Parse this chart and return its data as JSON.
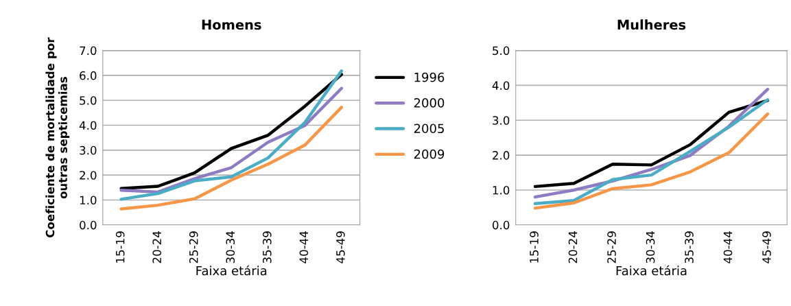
{
  "chart_data": [
    {
      "type": "line",
      "title": "Homens",
      "xlabel": "Faixa etária",
      "ylabel": "Coeficiente de mortalidade por\noutras septicemias",
      "categories": [
        "15-19",
        "20-24",
        "25-29",
        "30-34",
        "35-39",
        "40-44",
        "45-49"
      ],
      "ylim": [
        0,
        7
      ],
      "yticks": [
        {
          "value": 0,
          "label": "0.0"
        },
        {
          "value": 1,
          "label": "1.0"
        },
        {
          "value": 2,
          "label": "2.0"
        },
        {
          "value": 3,
          "label": "3.0"
        },
        {
          "value": 4,
          "label": "4.0"
        },
        {
          "value": 5,
          "label": "5.0"
        },
        {
          "value": 6,
          "label": "6.0"
        },
        {
          "value": 7,
          "label": "7.0"
        }
      ],
      "grid": "y",
      "legend": "right",
      "series": [
        {
          "name": "1996",
          "color": "#000000",
          "values": [
            1.46,
            1.55,
            2.09,
            3.07,
            3.6,
            4.76,
            6.04
          ]
        },
        {
          "name": "2000",
          "color": "#8e7cc3",
          "values": [
            1.39,
            1.32,
            1.86,
            2.3,
            3.32,
            3.99,
            5.48
          ]
        },
        {
          "name": "2005",
          "color": "#4bacc6",
          "values": [
            1.03,
            1.26,
            1.77,
            1.93,
            2.69,
            4.11,
            6.18
          ]
        },
        {
          "name": "2009",
          "color": "#f79646",
          "values": [
            0.64,
            0.79,
            1.05,
            1.8,
            2.44,
            3.2,
            4.72
          ]
        }
      ]
    },
    {
      "type": "line",
      "title": "Mulheres",
      "xlabel": "Faixa etária",
      "categories": [
        "15-19",
        "20-24",
        "25-29",
        "30-34",
        "35-39",
        "40-44",
        "45-49"
      ],
      "ylim": [
        0,
        5
      ],
      "yticks": [
        {
          "value": 0,
          "label": "0.0"
        },
        {
          "value": 1,
          "label": "1.0"
        },
        {
          "value": 2,
          "label": "2.0"
        },
        {
          "value": 3,
          "label": "3.0"
        },
        {
          "value": 4,
          "label": "4.0"
        },
        {
          "value": 5,
          "label": "5.0"
        }
      ],
      "grid": "y",
      "series": [
        {
          "color": "#000000",
          "values": [
            1.1,
            1.19,
            1.74,
            1.72,
            2.3,
            3.23,
            3.57
          ]
        },
        {
          "color": "#8e7cc3",
          "values": [
            0.8,
            1.0,
            1.26,
            1.59,
            1.99,
            2.83,
            3.89
          ]
        },
        {
          "color": "#4bacc6",
          "values": [
            0.61,
            0.7,
            1.3,
            1.43,
            2.11,
            2.8,
            3.59
          ]
        },
        {
          "color": "#f79646",
          "values": [
            0.48,
            0.63,
            1.04,
            1.15,
            1.52,
            2.07,
            3.18
          ]
        }
      ]
    }
  ]
}
